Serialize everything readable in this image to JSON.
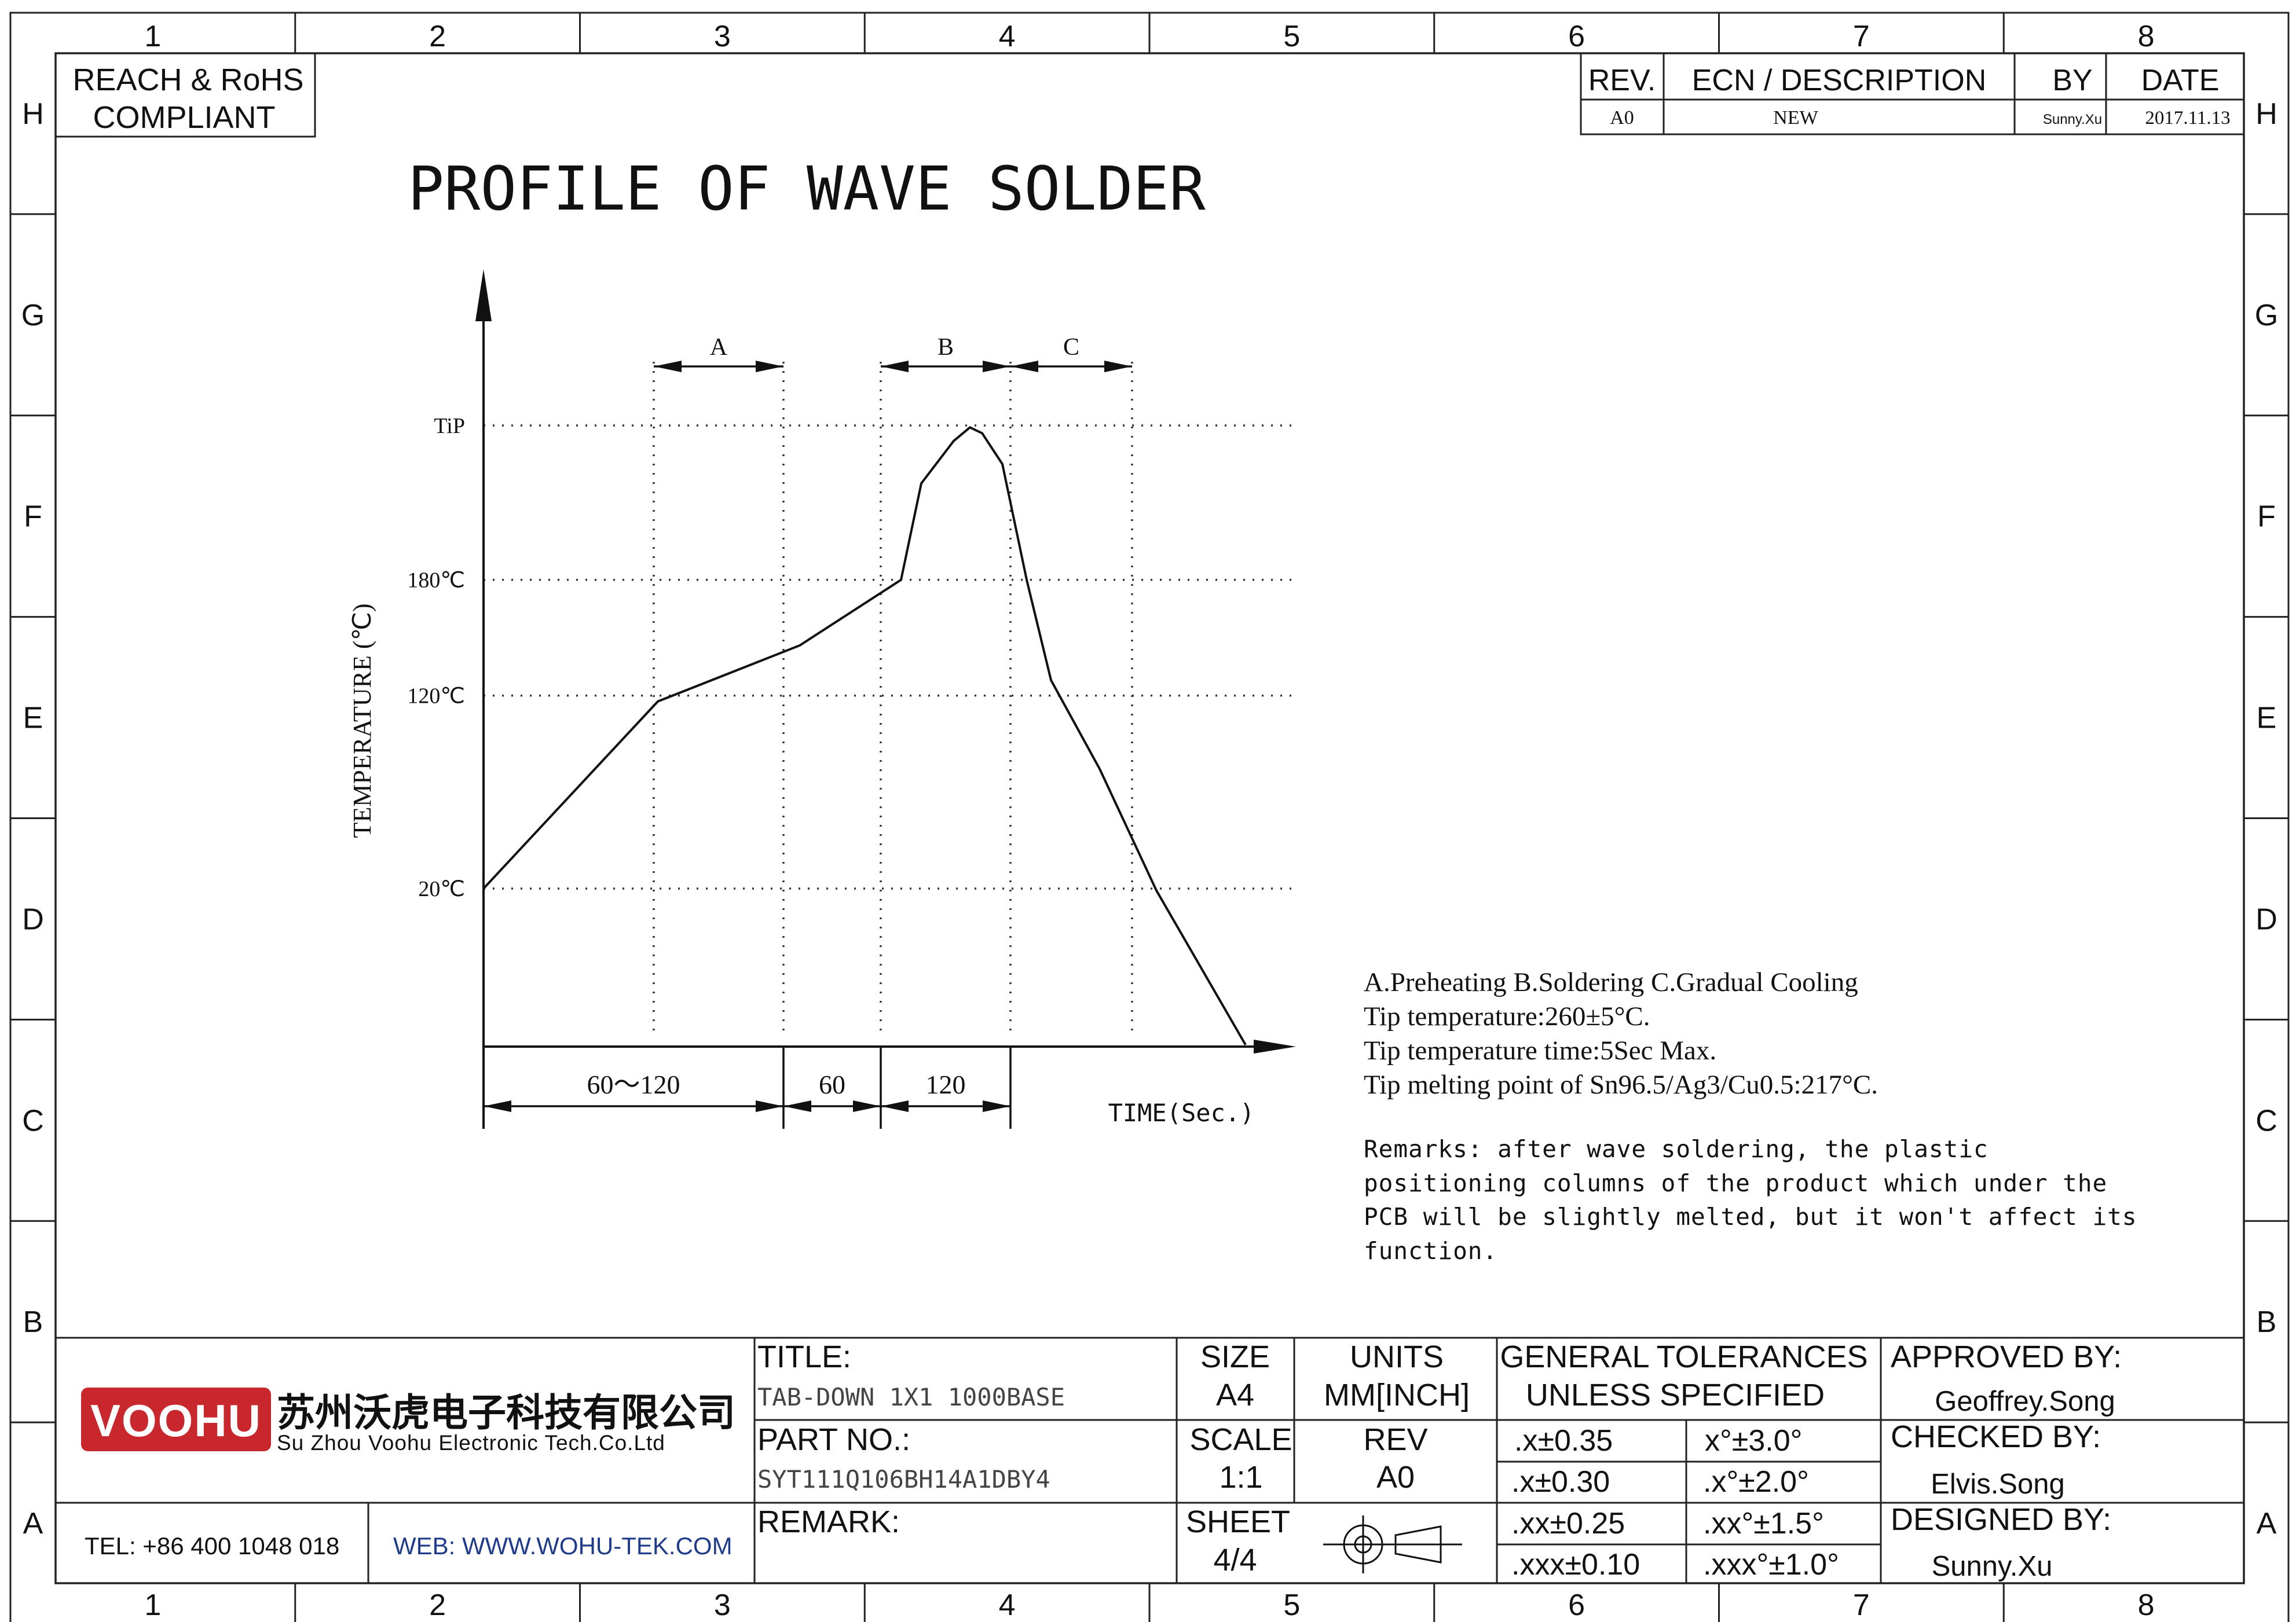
{
  "grid": {
    "columns": [
      "1",
      "2",
      "3",
      "4",
      "5",
      "6",
      "7",
      "8"
    ],
    "rows": [
      "H",
      "G",
      "F",
      "E",
      "D",
      "C",
      "B",
      "A"
    ]
  },
  "compliance": {
    "line1": "REACH & RoHS",
    "line2": "COMPLIANT"
  },
  "revision_block": {
    "headers": {
      "rev": "REV.",
      "ecn": "ECN / DESCRIPTION",
      "by": "BY",
      "date": "DATE"
    },
    "row": {
      "rev": "A0",
      "ecn": "NEW",
      "by": "Sunny.Xu",
      "date": "2017.11.13"
    }
  },
  "chart_data": {
    "type": "line",
    "title": "PROFILE OF WAVE SOLDER",
    "ylabel": "TEMPERATURE (℃)",
    "xlabel": "TIME(Sec.)",
    "y_ticks": [
      {
        "label": "20℃",
        "value": 20
      },
      {
        "label": "120℃",
        "value": 120
      },
      {
        "label": "180℃",
        "value": 180
      },
      {
        "label": "TiP",
        "value": 260
      }
    ],
    "phases": [
      {
        "label": "A",
        "start": 0.21,
        "end": 0.37
      },
      {
        "label": "B",
        "start": 0.49,
        "end": 0.65
      },
      {
        "label": "C",
        "start": 0.65,
        "end": 0.8
      }
    ],
    "time_dimensions": [
      {
        "label": "60～120"
      },
      {
        "label": "60"
      },
      {
        "label": "120"
      }
    ],
    "series": [
      {
        "points": [
          [
            0.0,
            20
          ],
          [
            0.215,
            117
          ],
          [
            0.39,
            146
          ],
          [
            0.515,
            180
          ],
          [
            0.54,
            230
          ],
          [
            0.58,
            252
          ],
          [
            0.6,
            259
          ],
          [
            0.615,
            256
          ],
          [
            0.64,
            240
          ],
          [
            0.67,
            180
          ],
          [
            0.7,
            128
          ],
          [
            0.76,
            82
          ],
          [
            0.83,
            19
          ],
          [
            0.94,
            -61
          ]
        ]
      }
    ]
  },
  "notes": {
    "line1": "A.Preheating  B.Soldering  C.Gradual Cooling",
    "line2": "Tip temperature:260±5°C.",
    "line3": "Tip temperature time:5Sec Max.",
    "line4": "Tip melting point of Sn96.5/Ag3/Cu0.5:217°C.",
    "remark1": "Remarks: after wave soldering, the plastic",
    "remark2": "positioning columns of the product  which under the",
    "remark3": "PCB will be slightly melted, but it won't affect its",
    "remark4": "function."
  },
  "company": {
    "logo_text": "VOOHU",
    "logo_color": "#c8282d",
    "name_cn": "苏州沃虎电子科技有限公司",
    "name_en": "Su Zhou Voohu Electronic Tech.Co.Ltd",
    "tel": "TEL: +86 400 1048 018",
    "web": "WEB: WWW.WOHU-TEK.COM",
    "web_color": "#1f3c8a"
  },
  "title_block": {
    "title_label": "TITLE:",
    "title_value": "TAB-DOWN 1X1 1000BASE",
    "part_label": "PART NO.:",
    "part_value": "SYT111Q106BH14A1DBY4",
    "remark_label": "REMARK:",
    "size_label": "SIZE",
    "size_value": "A4",
    "units_label": "UNITS",
    "units_value": "MM[INCH]",
    "scale_label": "SCALE",
    "scale_value": "1:1",
    "rev_label": "REV",
    "rev_value": "A0",
    "sheet_label": "SHEET",
    "sheet_value": "4/4",
    "tolerances_title1": "GENERAL TOLERANCES",
    "tolerances_title2": "UNLESS SPECIFIED",
    "tolerances": [
      [
        ".x±0.35",
        "x°±3.0°"
      ],
      [
        ".x±0.30",
        ".x°±2.0°"
      ],
      [
        ".xx±0.25",
        ".xx°±1.5°"
      ],
      [
        ".xxx±0.10",
        ".xxx°±1.0°"
      ]
    ],
    "approved_label": "APPROVED BY:",
    "approved_value": "Geoffrey.Song",
    "checked_label": "CHECKED BY:",
    "checked_value": "Elvis.Song",
    "designed_label": "DESIGNED BY:",
    "designed_value": "Sunny.Xu"
  },
  "projection_symbol": "first-angle-projection-icon"
}
